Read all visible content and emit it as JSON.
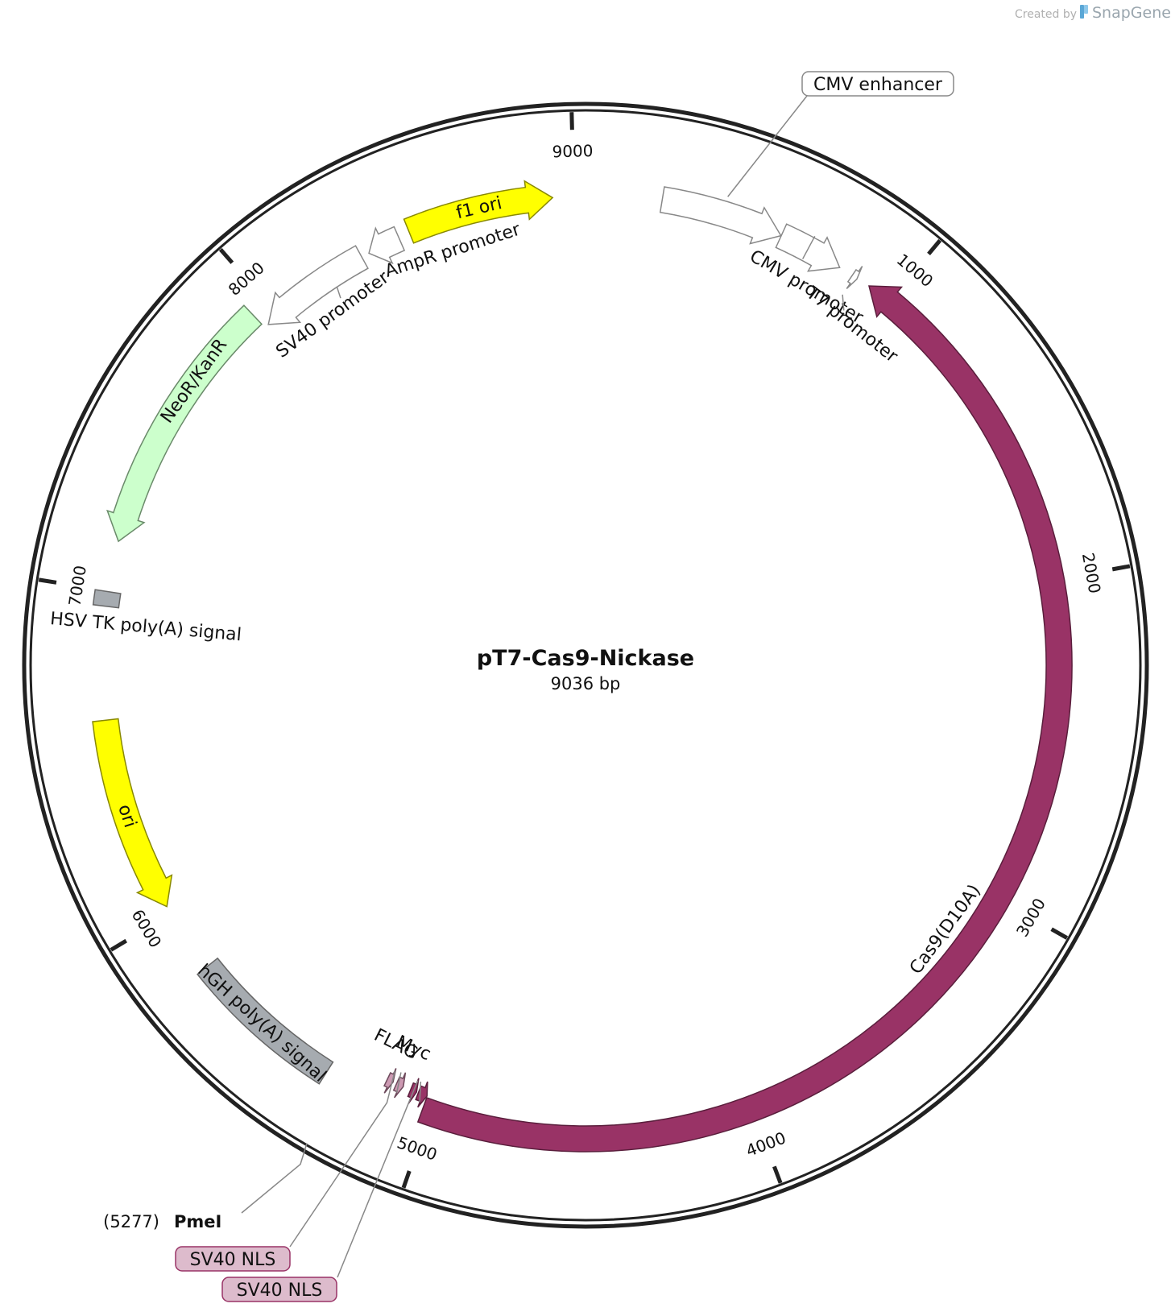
{
  "branding": {
    "prefix": "Created by",
    "name": "SnapGene",
    "logo_color": "#5aa7d6"
  },
  "plasmid": {
    "name": "pT7-Cas9-Nickase",
    "size_label": "9036 bp",
    "length_bp": 9036
  },
  "ticks": [
    {
      "bp": 1000,
      "label": "1000"
    },
    {
      "bp": 2000,
      "label": "2000"
    },
    {
      "bp": 3000,
      "label": "3000"
    },
    {
      "bp": 4000,
      "label": "4000"
    },
    {
      "bp": 5000,
      "label": "5000"
    },
    {
      "bp": 6000,
      "label": "6000"
    },
    {
      "bp": 7000,
      "label": "7000"
    },
    {
      "bp": 8000,
      "label": "8000"
    },
    {
      "bp": 9000,
      "label": "9000"
    }
  ],
  "features": [
    {
      "id": "cmv-enhancer",
      "name": "CMV enhancer",
      "start": 235,
      "end": 614,
      "strand": "+",
      "fill": "#ffffff",
      "stroke": "#888888"
    },
    {
      "id": "cmv-promoter",
      "name": "CMV promoter",
      "start": 615,
      "end": 818,
      "strand": "+",
      "fill": "#ffffff",
      "stroke": "#888888"
    },
    {
      "id": "t7-promoter",
      "name": "T7 promoter",
      "start": 863,
      "end": 881,
      "strand": "+",
      "fill": "#ffffff",
      "stroke": "#888888"
    },
    {
      "id": "cas9",
      "name": "Cas9(D10A)",
      "start": 923,
      "end": 5024,
      "strand": "-",
      "fill": "#993366",
      "stroke": "#5a1e3c"
    },
    {
      "id": "myc",
      "name": "Myc",
      "start": 5025,
      "end": 5054,
      "strand": "-",
      "fill": "#993366",
      "stroke": "#5a1e3c"
    },
    {
      "id": "sv40-nls-1",
      "name": "SV40 NLS",
      "start": 5060,
      "end": 5080,
      "strand": "-",
      "fill": "#993366",
      "stroke": "#5a1e3c"
    },
    {
      "id": "flag",
      "name": "FLAG",
      "start": 5105,
      "end": 5128,
      "strand": "-",
      "fill": "#cc99b2",
      "stroke": "#6e4a5c"
    },
    {
      "id": "sv40-nls-2",
      "name": "SV40 NLS",
      "start": 5140,
      "end": 5160,
      "strand": "-",
      "fill": "#cc99b2",
      "stroke": "#6e4a5c"
    },
    {
      "id": "hgh-polya",
      "name": "hGH poly(A) signal",
      "start": 5333,
      "end": 5810,
      "strand": "none",
      "fill": "#a6abb0",
      "stroke": "#666666"
    },
    {
      "id": "ori",
      "name": "ori",
      "start": 6025,
      "end": 6613,
      "strand": "-",
      "fill": "#ffff00",
      "stroke": "#888800"
    },
    {
      "id": "hsv-tk-polya",
      "name": "HSV TK poly(A) signal",
      "start": 6953,
      "end": 6997,
      "strand": "none",
      "fill": "#a6abb0",
      "stroke": "#666666"
    },
    {
      "id": "neor-kanr",
      "name": "NeoR/KanR",
      "start": 7150,
      "end": 7944,
      "strand": "-",
      "fill": "#ccffcc",
      "stroke": "#6a8a6a"
    },
    {
      "id": "sv40-promoter",
      "name": "SV40 promoter",
      "start": 7958,
      "end": 8315,
      "strand": "-",
      "fill": "#ffffff",
      "stroke": "#888888"
    },
    {
      "id": "ampr-promoter",
      "name": "AmpR promoter",
      "start": 8340,
      "end": 8444,
      "strand": "-",
      "fill": "#ffffff",
      "stroke": "#888888"
    },
    {
      "id": "f1-ori",
      "name": "f1 ori",
      "start": 8480,
      "end": 8935,
      "strand": "+",
      "fill": "#ffff00",
      "stroke": "#888800"
    }
  ],
  "restriction_sites": [
    {
      "id": "pmei",
      "position_label": "(5277)",
      "name": "PmeI",
      "bp": 5277
    }
  ],
  "callouts": [
    {
      "id": "cmv-enhancer-callout",
      "text": "CMV enhancer",
      "feature": "cmv-enhancer"
    },
    {
      "id": "sv40-nls-callout-1",
      "text": "SV40 NLS",
      "feature": "sv40-nls-2"
    },
    {
      "id": "sv40-nls-callout-2",
      "text": "SV40 NLS",
      "feature": "sv40-nls-1"
    }
  ],
  "colors": {
    "backbone": "#222222",
    "callout_box_grey": "#888888",
    "callout_box_pink_fill": "#ddbbcc",
    "callout_box_pink_stroke": "#993366"
  }
}
